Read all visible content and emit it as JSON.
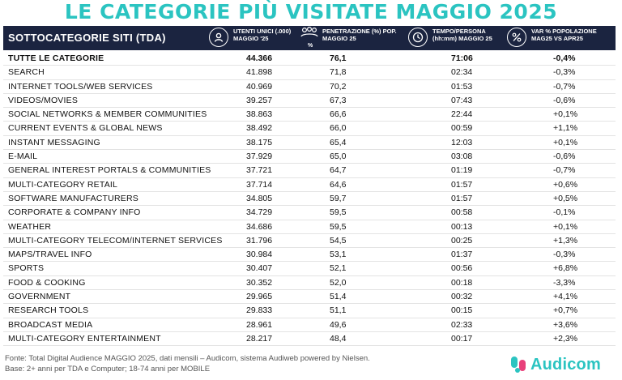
{
  "title": "LE CATEGORIE PIÙ VISITATE MAGGIO 2025",
  "header": {
    "col1": "SOTTOCATEGORIE SITI  (TDA)",
    "col2": "UTENTI UNICI (.000) MAGGIO '25",
    "col3": "PENETRAZIONE (%) POP. MAGGIO 25",
    "col3_sub": "%",
    "col4": "TEMPO/PERSONA (hh:mm) MAGGIO 25",
    "col5": "VAR % POPOLAZIONE MAG25 VS APR25",
    "icons": [
      "user-circle-icon",
      "group-percent-icon",
      "clock-person-icon",
      "percent-people-icon"
    ]
  },
  "rows": [
    {
      "name": "TUTTE LE CATEGORIE",
      "users": "44.366",
      "pen": "76,1",
      "time": "71:06",
      "var": "-0,4%"
    },
    {
      "name": "SEARCH",
      "users": "41.898",
      "pen": "71,8",
      "time": "02:34",
      "var": "-0,3%"
    },
    {
      "name": "INTERNET TOOLS/WEB SERVICES",
      "users": "40.969",
      "pen": "70,2",
      "time": "01:53",
      "var": "-0,7%"
    },
    {
      "name": "VIDEOS/MOVIES",
      "users": "39.257",
      "pen": "67,3",
      "time": "07:43",
      "var": "-0,6%"
    },
    {
      "name": "SOCIAL NETWORKS & MEMBER COMMUNITIES",
      "users": "38.863",
      "pen": "66,6",
      "time": "22:44",
      "var": "+0,1%"
    },
    {
      "name": "CURRENT EVENTS & GLOBAL NEWS",
      "users": "38.492",
      "pen": "66,0",
      "time": "00:59",
      "var": "+1,1%"
    },
    {
      "name": "INSTANT MESSAGING",
      "users": "38.175",
      "pen": "65,4",
      "time": "12:03",
      "var": "+0,1%"
    },
    {
      "name": "E-MAIL",
      "users": "37.929",
      "pen": "65,0",
      "time": "03:08",
      "var": "-0,6%"
    },
    {
      "name": "GENERAL INTEREST PORTALS & COMMUNITIES",
      "users": "37.721",
      "pen": "64,7",
      "time": "01:19",
      "var": "-0,7%"
    },
    {
      "name": "MULTI-CATEGORY RETAIL",
      "users": "37.714",
      "pen": "64,6",
      "time": "01:57",
      "var": "+0,6%"
    },
    {
      "name": "SOFTWARE MANUFACTURERS",
      "users": "34.805",
      "pen": "59,7",
      "time": "01:57",
      "var": "+0,5%"
    },
    {
      "name": "CORPORATE & COMPANY INFO",
      "users": "34.729",
      "pen": "59,5",
      "time": "00:58",
      "var": "-0,1%"
    },
    {
      "name": "WEATHER",
      "users": "34.686",
      "pen": "59,5",
      "time": "00:13",
      "var": "+0,1%"
    },
    {
      "name": "MULTI-CATEGORY TELECOM/INTERNET SERVICES",
      "users": "31.796",
      "pen": "54,5",
      "time": "00:25",
      "var": "+1,3%"
    },
    {
      "name": "MAPS/TRAVEL INFO",
      "users": "30.984",
      "pen": "53,1",
      "time": "01:37",
      "var": "-0,3%"
    },
    {
      "name": "SPORTS",
      "users": "30.407",
      "pen": "52,1",
      "time": "00:56",
      "var": "+6,8%"
    },
    {
      "name": "FOOD & COOKING",
      "users": "30.352",
      "pen": "52,0",
      "time": "00:18",
      "var": "-3,3%"
    },
    {
      "name": "GOVERNMENT",
      "users": "29.965",
      "pen": "51,4",
      "time": "00:32",
      "var": "+4,1%"
    },
    {
      "name": "RESEARCH TOOLS",
      "users": "29.833",
      "pen": "51,1",
      "time": "00:15",
      "var": "+0,7%"
    },
    {
      "name": "BROADCAST MEDIA",
      "users": "28.961",
      "pen": "49,6",
      "time": "02:33",
      "var": "+3,6%"
    },
    {
      "name": "MULTI-CATEGORY ENTERTAINMENT",
      "users": "28.217",
      "pen": "48,4",
      "time": "00:17",
      "var": "+2,3%"
    }
  ],
  "footer": {
    "line1": "Fonte: Total Digital Audience MAGGIO 2025, dati mensili – Audicom, sistema Audiweb powered by Nielsen.",
    "line2": "Base: 2+ anni per TDA e Computer; 18-74 anni per MOBILE"
  },
  "logo": {
    "text": "Audicom",
    "icon": "audicom-logo-icon"
  },
  "colors": {
    "accent": "#2bc4c1",
    "header_bg": "#1b2440",
    "logo_pink": "#e8407a"
  }
}
